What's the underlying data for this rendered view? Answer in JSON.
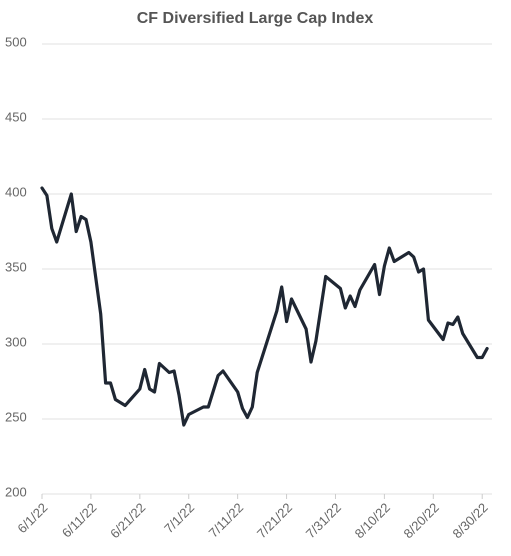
{
  "chart_data": {
    "type": "line",
    "title": "CF Diversified Large Cap Index",
    "x": [
      "2022-06-01",
      "2022-06-02",
      "2022-06-03",
      "2022-06-04",
      "2022-06-07",
      "2022-06-08",
      "2022-06-09",
      "2022-06-10",
      "2022-06-11",
      "2022-06-13",
      "2022-06-14",
      "2022-06-15",
      "2022-06-16",
      "2022-06-18",
      "2022-06-21",
      "2022-06-22",
      "2022-06-23",
      "2022-06-24",
      "2022-06-25",
      "2022-06-27",
      "2022-06-28",
      "2022-06-29",
      "2022-06-30",
      "2022-07-01",
      "2022-07-04",
      "2022-07-05",
      "2022-07-07",
      "2022-07-08",
      "2022-07-11",
      "2022-07-12",
      "2022-07-13",
      "2022-07-14",
      "2022-07-15",
      "2022-07-19",
      "2022-07-20",
      "2022-07-21",
      "2022-07-22",
      "2022-07-25",
      "2022-07-26",
      "2022-07-27",
      "2022-07-29",
      "2022-08-01",
      "2022-08-02",
      "2022-08-03",
      "2022-08-04",
      "2022-08-05",
      "2022-08-08",
      "2022-08-09",
      "2022-08-10",
      "2022-08-11",
      "2022-08-12",
      "2022-08-15",
      "2022-08-16",
      "2022-08-17",
      "2022-08-18",
      "2022-08-19",
      "2022-08-22",
      "2022-08-23",
      "2022-08-24",
      "2022-08-25",
      "2022-08-26",
      "2022-08-29",
      "2022-08-30",
      "2022-08-31"
    ],
    "series": [
      {
        "color": "#1f2733",
        "values": [
          404,
          399,
          377,
          368,
          400,
          375,
          385,
          383,
          368,
          320,
          274,
          274,
          263,
          259,
          270,
          283,
          270,
          268,
          287,
          281,
          282,
          266,
          246,
          253,
          258,
          258,
          279,
          282,
          268,
          257,
          251,
          258,
          281,
          322,
          338,
          315,
          330,
          310,
          288,
          302,
          345,
          337,
          324,
          332,
          325,
          336,
          353,
          333,
          352,
          364,
          355,
          361,
          358,
          348,
          350,
          316,
          303,
          314,
          313,
          318,
          307,
          291,
          291,
          297
        ]
      }
    ],
    "xlim": [
      "2022-06-01",
      "2022-09-01"
    ],
    "xticks": [
      {
        "value": "2022-06-01",
        "label": "6/1/22"
      },
      {
        "value": "2022-06-11",
        "label": "6/11/22"
      },
      {
        "value": "2022-06-21",
        "label": "6/21/22"
      },
      {
        "value": "2022-07-01",
        "label": "7/1/22"
      },
      {
        "value": "2022-07-11",
        "label": "7/11/22"
      },
      {
        "value": "2022-07-21",
        "label": "7/21/22"
      },
      {
        "value": "2022-07-31",
        "label": "7/31/22"
      },
      {
        "value": "2022-08-10",
        "label": "8/10/22"
      },
      {
        "value": "2022-08-20",
        "label": "8/20/22"
      },
      {
        "value": "2022-08-30",
        "label": "8/30/22"
      }
    ],
    "ylim": [
      200,
      500
    ],
    "yticks": [
      200,
      250,
      300,
      350,
      400,
      450,
      500
    ],
    "grid": true
  }
}
